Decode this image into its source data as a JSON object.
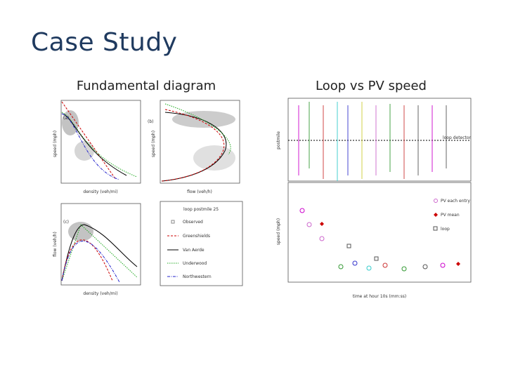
{
  "header": {
    "title": "Case Study"
  },
  "left": {
    "caption": "Fundamental diagram",
    "panels": {
      "a": {
        "tag": "(a)",
        "y_label": "speed (mph)",
        "x_label": "density (veh/mi)"
      },
      "b": {
        "tag": "(b)",
        "y_label": "speed (mph)",
        "x_label": "flow (veh/h)"
      },
      "c": {
        "tag": "(c)",
        "y_label": "flow (veh/h)",
        "x_label": "density (veh/mi)"
      }
    },
    "legend": {
      "title": "loop postmile 25",
      "items": [
        "Observed",
        "Greenshields",
        "Van Aerde",
        "Underwood",
        "Northwestern"
      ]
    }
  },
  "right": {
    "caption": "Loop vs PV speed",
    "top": {
      "y_label": "postmile",
      "annotation": "loop detector"
    },
    "bottom": {
      "y_label": "speed (mph)",
      "x_label": "time at hour 10s (mm:ss)",
      "legend": [
        "PV each entry",
        "PV mean",
        "loop"
      ]
    }
  }
}
